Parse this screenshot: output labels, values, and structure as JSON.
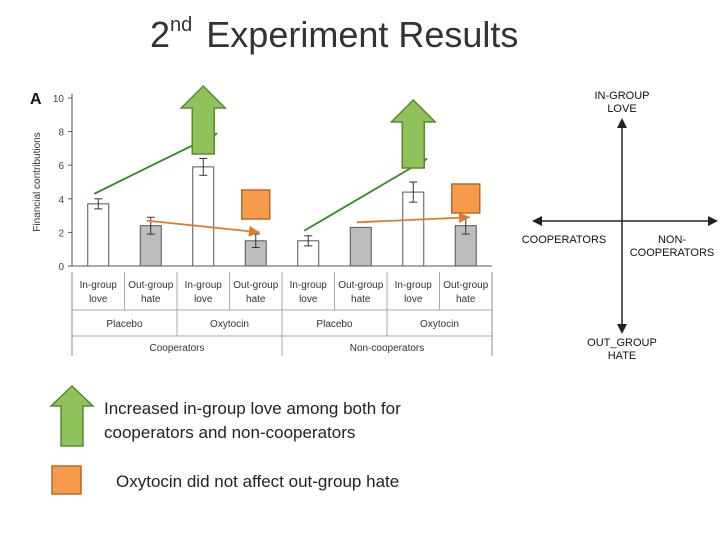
{
  "title": {
    "sup": "nd",
    "prefix": "2",
    "main": "Experiment Results"
  },
  "chart_data": {
    "type": "bar",
    "panel_label": "A",
    "ylabel": "Financial contributions",
    "ylim": [
      0,
      10
    ],
    "yticks": [
      0,
      2,
      4,
      6,
      8,
      10
    ],
    "categories": [
      [
        "In-group",
        "love"
      ],
      [
        "Out-group",
        "hate"
      ],
      [
        "In-group",
        "love"
      ],
      [
        "Out-group",
        "hate"
      ],
      [
        "In-group",
        "love"
      ],
      [
        "Out-group",
        "hate"
      ],
      [
        "In-group",
        "love"
      ],
      [
        "Out-group",
        "hate"
      ]
    ],
    "values": [
      3.7,
      2.4,
      5.9,
      1.5,
      1.5,
      2.3,
      4.4,
      2.4
    ],
    "errors": [
      0.3,
      0.5,
      0.5,
      0.4,
      0.3,
      0.0,
      0.6,
      0.5
    ],
    "bar_fill": [
      "white",
      "gray",
      "white",
      "gray",
      "white",
      "gray",
      "white",
      "gray"
    ],
    "conditions": [
      "Placebo",
      "Oxytocin",
      "Placebo",
      "Oxytocin"
    ],
    "groups": [
      "Cooperators",
      "Non-cooperators"
    ],
    "annotations": {
      "green_arrows": [
        [
          0,
          2
        ],
        [
          4,
          6
        ]
      ],
      "orange_arrows": [
        [
          1,
          3
        ],
        [
          5,
          7
        ]
      ],
      "green_color": "#2d8a1f",
      "orange_color": "#e07a2a"
    }
  },
  "quadrant": {
    "top": [
      "IN-GROUP",
      "LOVE"
    ],
    "bottom": [
      "OUT_GROUP",
      "HATE"
    ],
    "left": "COOPERATORS",
    "right": [
      "NON-",
      "COOPERATORS"
    ]
  },
  "legend": {
    "green_text": [
      "Increased in-group love among both for",
      "cooperators and non-cooperators"
    ],
    "orange_text": "Oxytocin did not affect out-group hate",
    "green_fill": "#8fc25a",
    "green_stroke": "#5a8a2e",
    "orange_fill": "#f79a4c",
    "orange_stroke": "#b86a2a"
  }
}
